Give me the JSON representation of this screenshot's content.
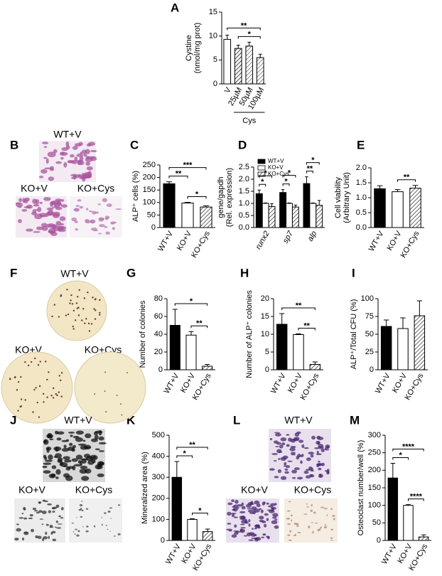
{
  "chart_data": [
    {
      "type": "bar",
      "panel": "A",
      "ylabel": [
        "Cystine",
        "(nmol/mg prot)"
      ],
      "categories": [
        "V",
        "25µM",
        "50µM",
        "100µM"
      ],
      "values": [
        9.3,
        7.4,
        7.9,
        5.5
      ],
      "errors": [
        0.9,
        0.7,
        0.8,
        0.7
      ],
      "colors": [
        "#ffffff",
        "#444444",
        "#888888",
        "#888888"
      ],
      "hatch": [
        false,
        true,
        true,
        true
      ],
      "ylim": [
        0,
        15
      ],
      "yticks": [
        0,
        5,
        10,
        15
      ],
      "group_label": {
        "text": "Cys",
        "from": 1,
        "to": 3
      },
      "significance": [
        {
          "label": "**",
          "from": 0,
          "to": 3
        },
        {
          "label": "*",
          "from": 1,
          "to": 3
        }
      ]
    },
    {
      "type": "bar",
      "panel": "C",
      "ylabel": [
        "ALP⁺ cells (%)"
      ],
      "categories": [
        "WT+V",
        "KO+V",
        "KO+Cys"
      ],
      "values": [
        175,
        98,
        82
      ],
      "errors": [
        8,
        3,
        5
      ],
      "colors": [
        "#000000",
        "#ffffff",
        "#666666"
      ],
      "hatch": [
        false,
        false,
        true
      ],
      "ylim": [
        0,
        250
      ],
      "yticks": [
        0,
        50,
        100,
        150,
        200,
        250
      ],
      "significance": [
        {
          "label": "**",
          "from": 0,
          "to": 1
        },
        {
          "label": "***",
          "from": 0,
          "to": 2
        },
        {
          "label": "*",
          "from": 1,
          "to": 2
        }
      ]
    },
    {
      "type": "grouped_bar",
      "panel": "D",
      "ylabel": [
        "gene/gapdh",
        "(Rel. expression)"
      ],
      "categories": [
        "runx2",
        "sp7",
        "alp"
      ],
      "series": [
        {
          "name": "WT+V",
          "color": "#000000",
          "hatch": false,
          "values": [
            1.4,
            1.45,
            1.82
          ],
          "errors": [
            0.15,
            0.12,
            0.28
          ]
        },
        {
          "name": "KO+V",
          "color": "#ffffff",
          "hatch": false,
          "values": [
            1.0,
            1.0,
            1.0
          ],
          "errors": [
            0.02,
            0.02,
            0.02
          ]
        },
        {
          "name": "KO+Cys",
          "color": "#666666",
          "hatch": true,
          "values": [
            0.87,
            0.85,
            0.92
          ],
          "errors": [
            0.12,
            0.08,
            0.2
          ]
        }
      ],
      "ylim": [
        0,
        2.5
      ],
      "yticks": [
        {
          "value": 0,
          "label": "0.0"
        },
        0.5,
        {
          "value": 1,
          "label": "1.0"
        },
        1.5,
        {
          "value": 2,
          "label": "2.0"
        },
        2.5
      ],
      "significance": [
        {
          "label": "*",
          "group": 0,
          "from": 0,
          "to": 1
        },
        {
          "label": "*",
          "group": 0,
          "from": 0,
          "to": 2
        },
        {
          "label": "*",
          "group": 1,
          "from": 0,
          "to": 1
        },
        {
          "label": "*",
          "group": 1,
          "from": 0,
          "to": 2
        },
        {
          "label": "**",
          "group": 2,
          "from": 0,
          "to": 1
        },
        {
          "label": "*",
          "group": 2,
          "from": 0,
          "to": 2
        }
      ]
    },
    {
      "type": "bar",
      "panel": "E",
      "ylabel": [
        "Cell viability",
        "(Arbitrary Unit)"
      ],
      "categories": [
        "WT+V",
        "KO+V",
        "KO+Cys"
      ],
      "values": [
        1.3,
        1.2,
        1.32
      ],
      "errors": [
        0.1,
        0.07,
        0.09
      ],
      "colors": [
        "#000000",
        "#ffffff",
        "#666666"
      ],
      "hatch": [
        false,
        false,
        true
      ],
      "ylim": [
        0,
        2
      ],
      "yticks": [
        {
          "value": 0,
          "label": "0.0"
        },
        0.5,
        {
          "value": 1,
          "label": "1.0"
        },
        1.5,
        {
          "value": 2,
          "label": "2.0"
        }
      ],
      "significance": [
        {
          "label": "**",
          "from": 1,
          "to": 2
        }
      ]
    },
    {
      "type": "bar",
      "panel": "G",
      "ylabel": [
        "Number of colonies"
      ],
      "categories": [
        "WT+V",
        "KO+V",
        "KO+Cys"
      ],
      "values": [
        50,
        39,
        4
      ],
      "errors": [
        18,
        4,
        2
      ],
      "colors": [
        "#000000",
        "#ffffff",
        "#666666"
      ],
      "hatch": [
        false,
        false,
        true
      ],
      "ylim": [
        0,
        80
      ],
      "yticks": [
        0,
        20,
        40,
        60,
        80
      ],
      "significance": [
        {
          "label": "*",
          "from": 0,
          "to": 2
        },
        {
          "label": "**",
          "from": 1,
          "to": 2
        }
      ]
    },
    {
      "type": "bar",
      "panel": "H",
      "ylabel": [
        "Number of ALP⁺ colonies"
      ],
      "categories": [
        "WT+V",
        "KO+V",
        "KO+Cys"
      ],
      "values": [
        12.8,
        9.9,
        1.5
      ],
      "errors": [
        3,
        0.2,
        0.7
      ],
      "colors": [
        "#000000",
        "#ffffff",
        "#666666"
      ],
      "hatch": [
        false,
        false,
        true
      ],
      "ylim": [
        0,
        20
      ],
      "yticks": [
        0,
        5,
        10,
        15,
        20
      ],
      "significance": [
        {
          "label": "**",
          "from": 0,
          "to": 2
        },
        {
          "label": "**",
          "from": 1,
          "to": 2
        }
      ]
    },
    {
      "type": "bar",
      "panel": "I",
      "ylabel": [
        "ALP⁺/Total CFU (%)"
      ],
      "categories": [
        "WT+V",
        "KO+V",
        "KO+Cys"
      ],
      "values": [
        61,
        58,
        76
      ],
      "errors": [
        9,
        15,
        21
      ],
      "colors": [
        "#000000",
        "#ffffff",
        "#666666"
      ],
      "hatch": [
        false,
        false,
        true
      ],
      "ylim": [
        0,
        100
      ],
      "yticks": [
        0,
        25,
        50,
        75,
        100
      ]
    },
    {
      "type": "bar",
      "panel": "K",
      "ylabel": [
        "Mineralized area (%)"
      ],
      "categories": [
        "WT+V",
        "KO+V",
        "KO+Cys"
      ],
      "values": [
        300,
        100,
        42
      ],
      "errors": [
        75,
        3,
        12
      ],
      "colors": [
        "#000000",
        "#ffffff",
        "#666666"
      ],
      "hatch": [
        false,
        false,
        true
      ],
      "ylim": [
        0,
        500
      ],
      "yticks": [
        0,
        100,
        200,
        300,
        400,
        500
      ],
      "significance": [
        {
          "label": "*",
          "from": 0,
          "to": 1
        },
        {
          "label": "**",
          "from": 0,
          "to": 2
        },
        {
          "label": "*",
          "from": 1,
          "to": 2
        }
      ]
    },
    {
      "type": "bar",
      "panel": "M",
      "ylabel": [
        "Osteoclast number/well (%)"
      ],
      "categories": [
        "WT+V",
        "KO+V",
        "KO+Cys"
      ],
      "values": [
        178,
        100,
        10
      ],
      "errors": [
        42,
        2,
        6
      ],
      "colors": [
        "#000000",
        "#ffffff",
        "#666666"
      ],
      "hatch": [
        false,
        false,
        true
      ],
      "ylim": [
        0,
        300
      ],
      "yticks": [
        0,
        50,
        100,
        150,
        200,
        250,
        300
      ],
      "significance": [
        {
          "label": "*",
          "from": 0,
          "to": 1
        },
        {
          "label": "****",
          "from": 0,
          "to": 2
        },
        {
          "label": "****",
          "from": 1,
          "to": 2
        }
      ]
    }
  ],
  "images": [
    {
      "panel": "B",
      "labels": [
        "WT+V",
        "KO+V",
        "KO+Cys"
      ]
    },
    {
      "panel": "F",
      "labels": [
        "WT+V",
        "KO+V",
        "KO+Cys"
      ]
    },
    {
      "panel": "J",
      "labels": [
        "WT+V",
        "KO+V",
        "KO+Cys"
      ]
    },
    {
      "panel": "L",
      "labels": [
        "WT+V",
        "KO+V",
        "KO+Cys"
      ]
    }
  ]
}
